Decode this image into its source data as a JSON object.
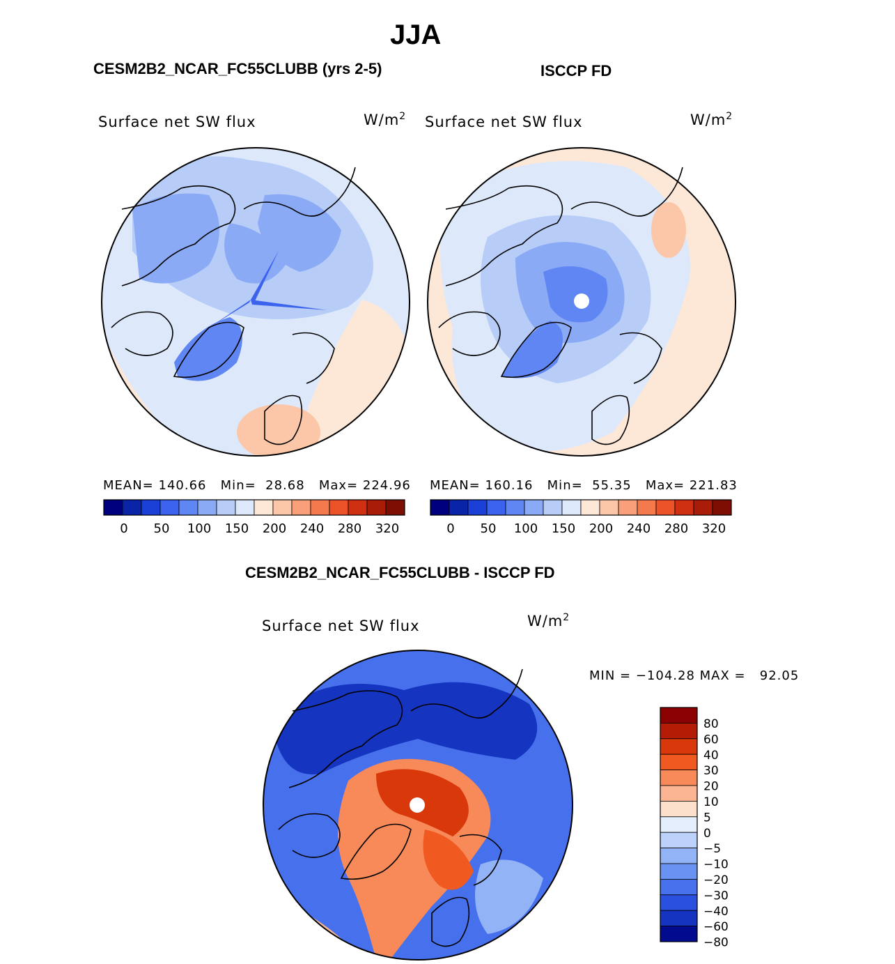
{
  "figure": {
    "season": "JJA",
    "panels": [
      {
        "id": "model",
        "heading": "CESM2B2_NCAR_FC55CLUBB (yrs 2-5)",
        "variable": "Surface net SW flux",
        "units": "W/m",
        "units_exp": "2",
        "stats": {
          "mean_label": "MEAN=",
          "mean": "140.66",
          "min_label": "Min=",
          "min": "28.68",
          "max_label": "Max=",
          "max": "224.96"
        }
      },
      {
        "id": "obs",
        "heading": "ISCCP FD",
        "variable": "Surface net SW flux",
        "units": "W/m",
        "units_exp": "2",
        "stats": {
          "mean_label": "MEAN=",
          "mean": "160.16",
          "min_label": "Min=",
          "min": "55.35",
          "max_label": "Max=",
          "max": "221.83"
        }
      }
    ],
    "abs_colorbar": {
      "colors": [
        "#00007f",
        "#0a24a8",
        "#1a40d8",
        "#3b63ee",
        "#5f86f2",
        "#8aaaf5",
        "#b7cdf8",
        "#dde9fb",
        "#fde8d8",
        "#fcc6a8",
        "#f9a07a",
        "#f47a4e",
        "#ec5228",
        "#d03012",
        "#a81c08",
        "#7e0e04"
      ],
      "labels": [
        "0",
        "50",
        "100",
        "150",
        "200",
        "240",
        "280",
        "320"
      ]
    },
    "diff_panel": {
      "heading": "CESM2B2_NCAR_FC55CLUBB - ISCCP FD",
      "variable": "Surface net SW flux",
      "units": "W/m",
      "units_exp": "2",
      "minmax": "MIN = −104.28 MAX =   92.05",
      "colorbar": {
        "colors": [
          "#8b0000",
          "#b41c06",
          "#d8380a",
          "#f05a20",
          "#f88a5a",
          "#fcb592",
          "#fde0cc",
          "#e4eefc",
          "#bcd2fa",
          "#92b4f7",
          "#6a92f2",
          "#4670ec",
          "#2a50e0",
          "#1534c0",
          "#020a8e"
        ],
        "labels": [
          "80",
          "60",
          "40",
          "30",
          "20",
          "10",
          "5",
          "0",
          "−5",
          "−10",
          "−20",
          "−30",
          "−40",
          "−60",
          "−80"
        ]
      }
    }
  }
}
